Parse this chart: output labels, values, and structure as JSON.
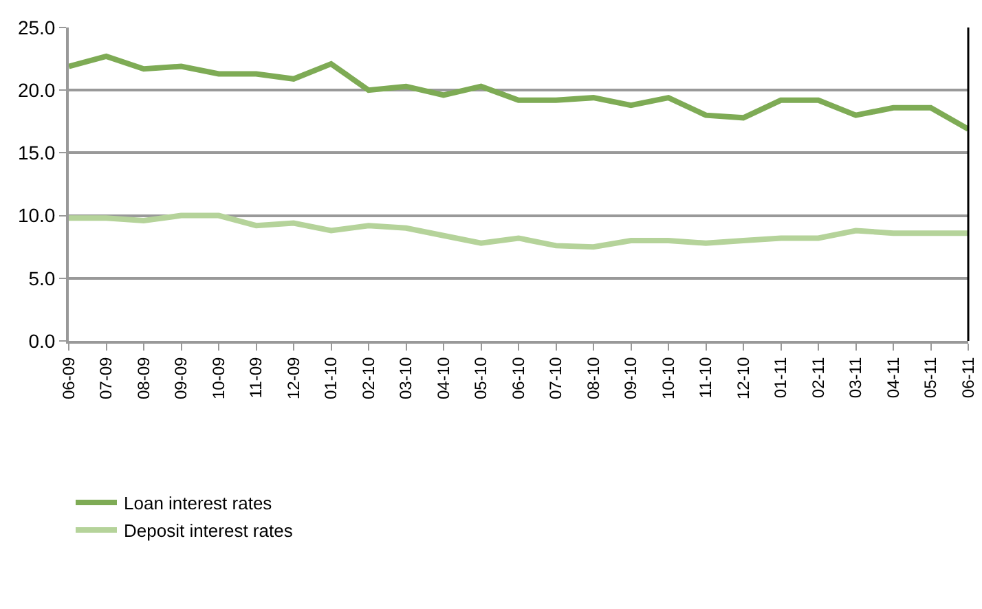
{
  "chart_data": {
    "type": "line",
    "categories": [
      "06-09",
      "07-09",
      "08-09",
      "09-09",
      "10-09",
      "11-09",
      "12-09",
      "01-10",
      "02-10",
      "03-10",
      "04-10",
      "05-10",
      "06-10",
      "07-10",
      "08-10",
      "09-10",
      "10-10",
      "11-10",
      "12-10",
      "01-11",
      "02-11",
      "03-11",
      "04-11",
      "05-11",
      "06-11"
    ],
    "series": [
      {
        "name": "Loan interest rates",
        "color": "#7eab55",
        "values": [
          21.9,
          22.7,
          21.7,
          21.9,
          21.3,
          21.3,
          20.9,
          22.1,
          20.0,
          20.3,
          19.6,
          20.3,
          19.2,
          19.2,
          19.4,
          18.8,
          19.4,
          18.0,
          17.8,
          19.2,
          19.2,
          18.0,
          18.6,
          18.6,
          16.9
        ]
      },
      {
        "name": "Deposit interest rates",
        "color": "#b5d39a",
        "values": [
          9.8,
          9.8,
          9.6,
          10.0,
          10.0,
          9.2,
          9.4,
          8.8,
          9.2,
          9.0,
          8.4,
          7.8,
          8.2,
          7.6,
          7.5,
          8.0,
          8.0,
          7.8,
          8.0,
          8.2,
          8.2,
          8.8,
          8.6,
          8.6,
          8.6
        ]
      }
    ],
    "ylim": [
      0,
      25
    ],
    "yticks": [
      {
        "value": 0,
        "label": "0.0"
      },
      {
        "value": 5,
        "label": "5.0"
      },
      {
        "value": 10,
        "label": "10.0"
      },
      {
        "value": 15,
        "label": "15.0"
      },
      {
        "value": 20,
        "label": "20.0"
      },
      {
        "value": 25,
        "label": "25.0"
      }
    ],
    "grid": "y",
    "legend": "bottom left",
    "marker": "none",
    "line_style": "solid"
  }
}
